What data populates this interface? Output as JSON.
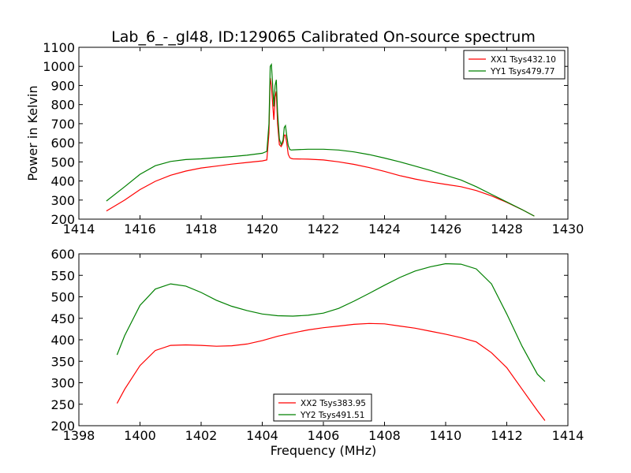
{
  "title": "Lab_6_-_gl48, ID:129065 Calibrated On-source spectrum",
  "chart_data": [
    {
      "type": "line",
      "xlabel": "",
      "ylabel": "Power in Kelvin",
      "xlim": [
        1414,
        1430
      ],
      "ylim": [
        200,
        1100
      ],
      "xticks": [
        1414,
        1416,
        1418,
        1420,
        1422,
        1424,
        1426,
        1428,
        1430
      ],
      "yticks": [
        200,
        300,
        400,
        500,
        600,
        700,
        800,
        900,
        1000,
        1100
      ],
      "legend_position": "top-right",
      "series": [
        {
          "name": "XX1 Tsys432.10",
          "color": "#ff0000",
          "x": [
            1414.9,
            1415.5,
            1416.0,
            1416.5,
            1417.0,
            1417.5,
            1418.0,
            1418.5,
            1419.0,
            1419.5,
            1420.0,
            1420.15,
            1420.22,
            1420.26,
            1420.3,
            1420.34,
            1420.38,
            1420.42,
            1420.46,
            1420.5,
            1420.56,
            1420.62,
            1420.68,
            1420.72,
            1420.76,
            1420.8,
            1420.85,
            1420.9,
            1420.95,
            1421.0,
            1421.5,
            1422.0,
            1422.5,
            1423.0,
            1423.5,
            1424.0,
            1424.5,
            1425.0,
            1425.5,
            1426.0,
            1426.5,
            1427.0,
            1427.5,
            1428.0,
            1428.5,
            1428.9
          ],
          "y": [
            243,
            300,
            355,
            398,
            430,
            452,
            468,
            478,
            488,
            497,
            505,
            510,
            650,
            940,
            900,
            800,
            720,
            840,
            870,
            700,
            590,
            580,
            600,
            640,
            640,
            600,
            540,
            522,
            518,
            516,
            514,
            510,
            500,
            487,
            470,
            450,
            428,
            410,
            395,
            382,
            370,
            350,
            322,
            288,
            250,
            216
          ]
        },
        {
          "name": "YY1 Tsys479.77",
          "color": "#008000",
          "x": [
            1414.9,
            1415.5,
            1416.0,
            1416.5,
            1417.0,
            1417.5,
            1418.0,
            1418.5,
            1419.0,
            1419.5,
            1420.0,
            1420.15,
            1420.22,
            1420.26,
            1420.3,
            1420.34,
            1420.38,
            1420.42,
            1420.46,
            1420.5,
            1420.56,
            1420.62,
            1420.68,
            1420.72,
            1420.76,
            1420.8,
            1420.85,
            1420.9,
            1420.95,
            1421.0,
            1421.5,
            1422.0,
            1422.5,
            1423.0,
            1423.5,
            1424.0,
            1424.5,
            1425.0,
            1425.5,
            1426.0,
            1426.5,
            1427.0,
            1427.5,
            1428.0,
            1428.5,
            1428.9
          ],
          "y": [
            295,
            370,
            435,
            480,
            502,
            512,
            516,
            522,
            528,
            535,
            545,
            555,
            700,
            1000,
            1010,
            900,
            790,
            900,
            930,
            760,
            620,
            590,
            615,
            680,
            690,
            640,
            585,
            565,
            562,
            563,
            566,
            566,
            562,
            552,
            538,
            520,
            500,
            478,
            455,
            430,
            405,
            370,
            330,
            290,
            250,
            216
          ]
        }
      ]
    },
    {
      "type": "line",
      "xlabel": "Frequency (MHz)",
      "ylabel": "",
      "xlim": [
        1398,
        1414
      ],
      "ylim": [
        200,
        600
      ],
      "xticks": [
        1398,
        1400,
        1402,
        1404,
        1406,
        1408,
        1410,
        1412,
        1414
      ],
      "yticks": [
        200,
        250,
        300,
        350,
        400,
        450,
        500,
        550,
        600
      ],
      "legend_position": "bottom-center",
      "series": [
        {
          "name": "XX2 Tsys383.95",
          "color": "#ff0000",
          "x": [
            1399.25,
            1399.5,
            1400.0,
            1400.5,
            1401.0,
            1401.5,
            1402.0,
            1402.5,
            1403.0,
            1403.5,
            1404.0,
            1404.5,
            1405.0,
            1405.5,
            1406.0,
            1406.5,
            1407.0,
            1407.5,
            1408.0,
            1408.5,
            1409.0,
            1409.5,
            1410.0,
            1410.5,
            1411.0,
            1411.5,
            1412.0,
            1412.5,
            1413.0,
            1413.25
          ],
          "y": [
            252,
            285,
            340,
            375,
            387,
            388,
            387,
            385,
            386,
            390,
            398,
            408,
            416,
            423,
            428,
            432,
            436,
            438,
            437,
            432,
            427,
            420,
            413,
            405,
            395,
            370,
            335,
            285,
            235,
            212
          ]
        },
        {
          "name": "YY2 Tsys491.51",
          "color": "#008000",
          "x": [
            1399.25,
            1399.5,
            1400.0,
            1400.5,
            1401.0,
            1401.5,
            1402.0,
            1402.5,
            1403.0,
            1403.5,
            1404.0,
            1404.5,
            1405.0,
            1405.5,
            1406.0,
            1406.5,
            1407.0,
            1407.5,
            1408.0,
            1408.5,
            1409.0,
            1409.5,
            1410.0,
            1410.5,
            1411.0,
            1411.5,
            1412.0,
            1412.5,
            1413.0,
            1413.25
          ],
          "y": [
            365,
            410,
            480,
            518,
            530,
            525,
            510,
            492,
            478,
            468,
            460,
            456,
            455,
            457,
            462,
            473,
            490,
            508,
            527,
            545,
            560,
            570,
            577,
            576,
            565,
            530,
            460,
            385,
            320,
            303
          ]
        }
      ]
    }
  ]
}
